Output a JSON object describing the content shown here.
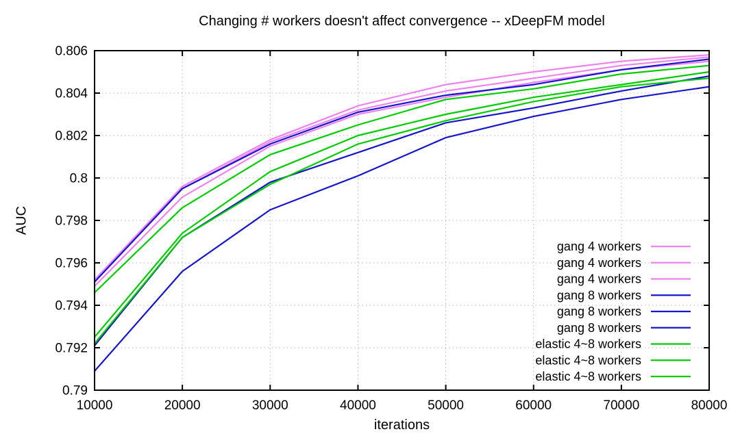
{
  "chart_data": {
    "type": "line",
    "title": "Changing # workers doesn't affect convergence -- xDeepFM model",
    "xlabel": "iterations",
    "ylabel": "AUC",
    "xlim": [
      10000,
      80000
    ],
    "ylim": [
      0.79,
      0.806
    ],
    "grid": true,
    "legend_position": "inside-bottom-right",
    "xticks": [
      10000,
      20000,
      30000,
      40000,
      50000,
      60000,
      70000,
      80000
    ],
    "xtick_labels": [
      "10000",
      "20000",
      "30000",
      "40000",
      "50000",
      "60000",
      "70000",
      "80000"
    ],
    "yticks": [
      0.79,
      0.792,
      0.794,
      0.796,
      0.798,
      0.8,
      0.802,
      0.804,
      0.806
    ],
    "ytick_labels": [
      "0.79",
      "0.792",
      "0.794",
      "0.796",
      "0.798",
      "0.8",
      "0.802",
      "0.804",
      "0.806"
    ],
    "x": [
      10000,
      20000,
      30000,
      40000,
      50000,
      60000,
      70000,
      80000
    ],
    "series": [
      {
        "name": "gang 4 workers",
        "color": "#ee82ee",
        "values": [
          0.7952,
          0.7996,
          0.8018,
          0.8034,
          0.8044,
          0.805,
          0.8055,
          0.8058
        ]
      },
      {
        "name": "gang 4 workers",
        "color": "#ee82ee",
        "values": [
          0.7951,
          0.7995,
          0.8017,
          0.8032,
          0.8041,
          0.8047,
          0.8053,
          0.8057
        ]
      },
      {
        "name": "gang 4 workers",
        "color": "#ee82ee",
        "values": [
          0.7949,
          0.7991,
          0.8015,
          0.803,
          0.8038,
          0.8045,
          0.8051,
          0.8055
        ]
      },
      {
        "name": "gang 8 workers",
        "color": "#1515cd",
        "values": [
          0.7951,
          0.7995,
          0.8016,
          0.8031,
          0.8039,
          0.8044,
          0.8051,
          0.8056
        ]
      },
      {
        "name": "gang 8 workers",
        "color": "#1515cd",
        "values": [
          0.7921,
          0.7972,
          0.7998,
          0.8012,
          0.8026,
          0.8033,
          0.8041,
          0.8048
        ]
      },
      {
        "name": "gang 8 workers",
        "color": "#1515cd",
        "values": [
          0.7909,
          0.7956,
          0.7985,
          0.8001,
          0.8019,
          0.8029,
          0.8037,
          0.8043
        ]
      },
      {
        "name": "elastic 4~8 workers",
        "color": "#00cc00",
        "values": [
          0.7946,
          0.7986,
          0.8011,
          0.8025,
          0.8037,
          0.8042,
          0.8049,
          0.8053
        ]
      },
      {
        "name": "elastic 4~8 workers",
        "color": "#00cc00",
        "values": [
          0.7925,
          0.7974,
          0.8003,
          0.802,
          0.803,
          0.8038,
          0.8044,
          0.805
        ]
      },
      {
        "name": "elastic 4~8 workers",
        "color": "#00cc00",
        "values": [
          0.7922,
          0.7972,
          0.7997,
          0.8016,
          0.8027,
          0.8036,
          0.8043,
          0.8047
        ]
      }
    ],
    "colors": {
      "border": "#000000",
      "grid": "#b5b5b5",
      "background": "#ffffff"
    }
  }
}
